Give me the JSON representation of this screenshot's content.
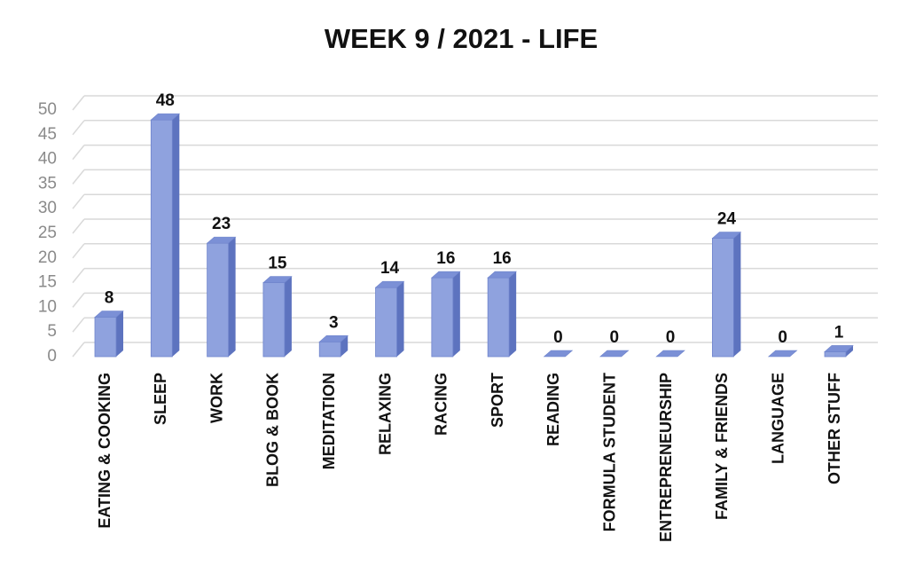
{
  "chart_data": {
    "type": "bar",
    "title": "WEEK 9  / 2021  - LIFE",
    "categories": [
      "EATING & COOKING",
      "SLEEP",
      "WORK",
      "BLOG & BOOK",
      "MEDITATION",
      "RELAXING",
      "RACING",
      "SPORT",
      "READING",
      "FORMULA STUDENT",
      "ENTREPRENEURSHIP",
      "FAMILY & FRIENDS",
      "LANGUAGE",
      "OTHER STUFF"
    ],
    "values": [
      8,
      48,
      23,
      15,
      3,
      14,
      16,
      16,
      0,
      0,
      0,
      24,
      0,
      1
    ],
    "color": "#8fa2de",
    "ylim": [
      0,
      50
    ],
    "yticks": [
      0,
      5,
      10,
      15,
      20,
      25,
      30,
      35,
      40,
      45,
      50
    ],
    "grid": true
  }
}
